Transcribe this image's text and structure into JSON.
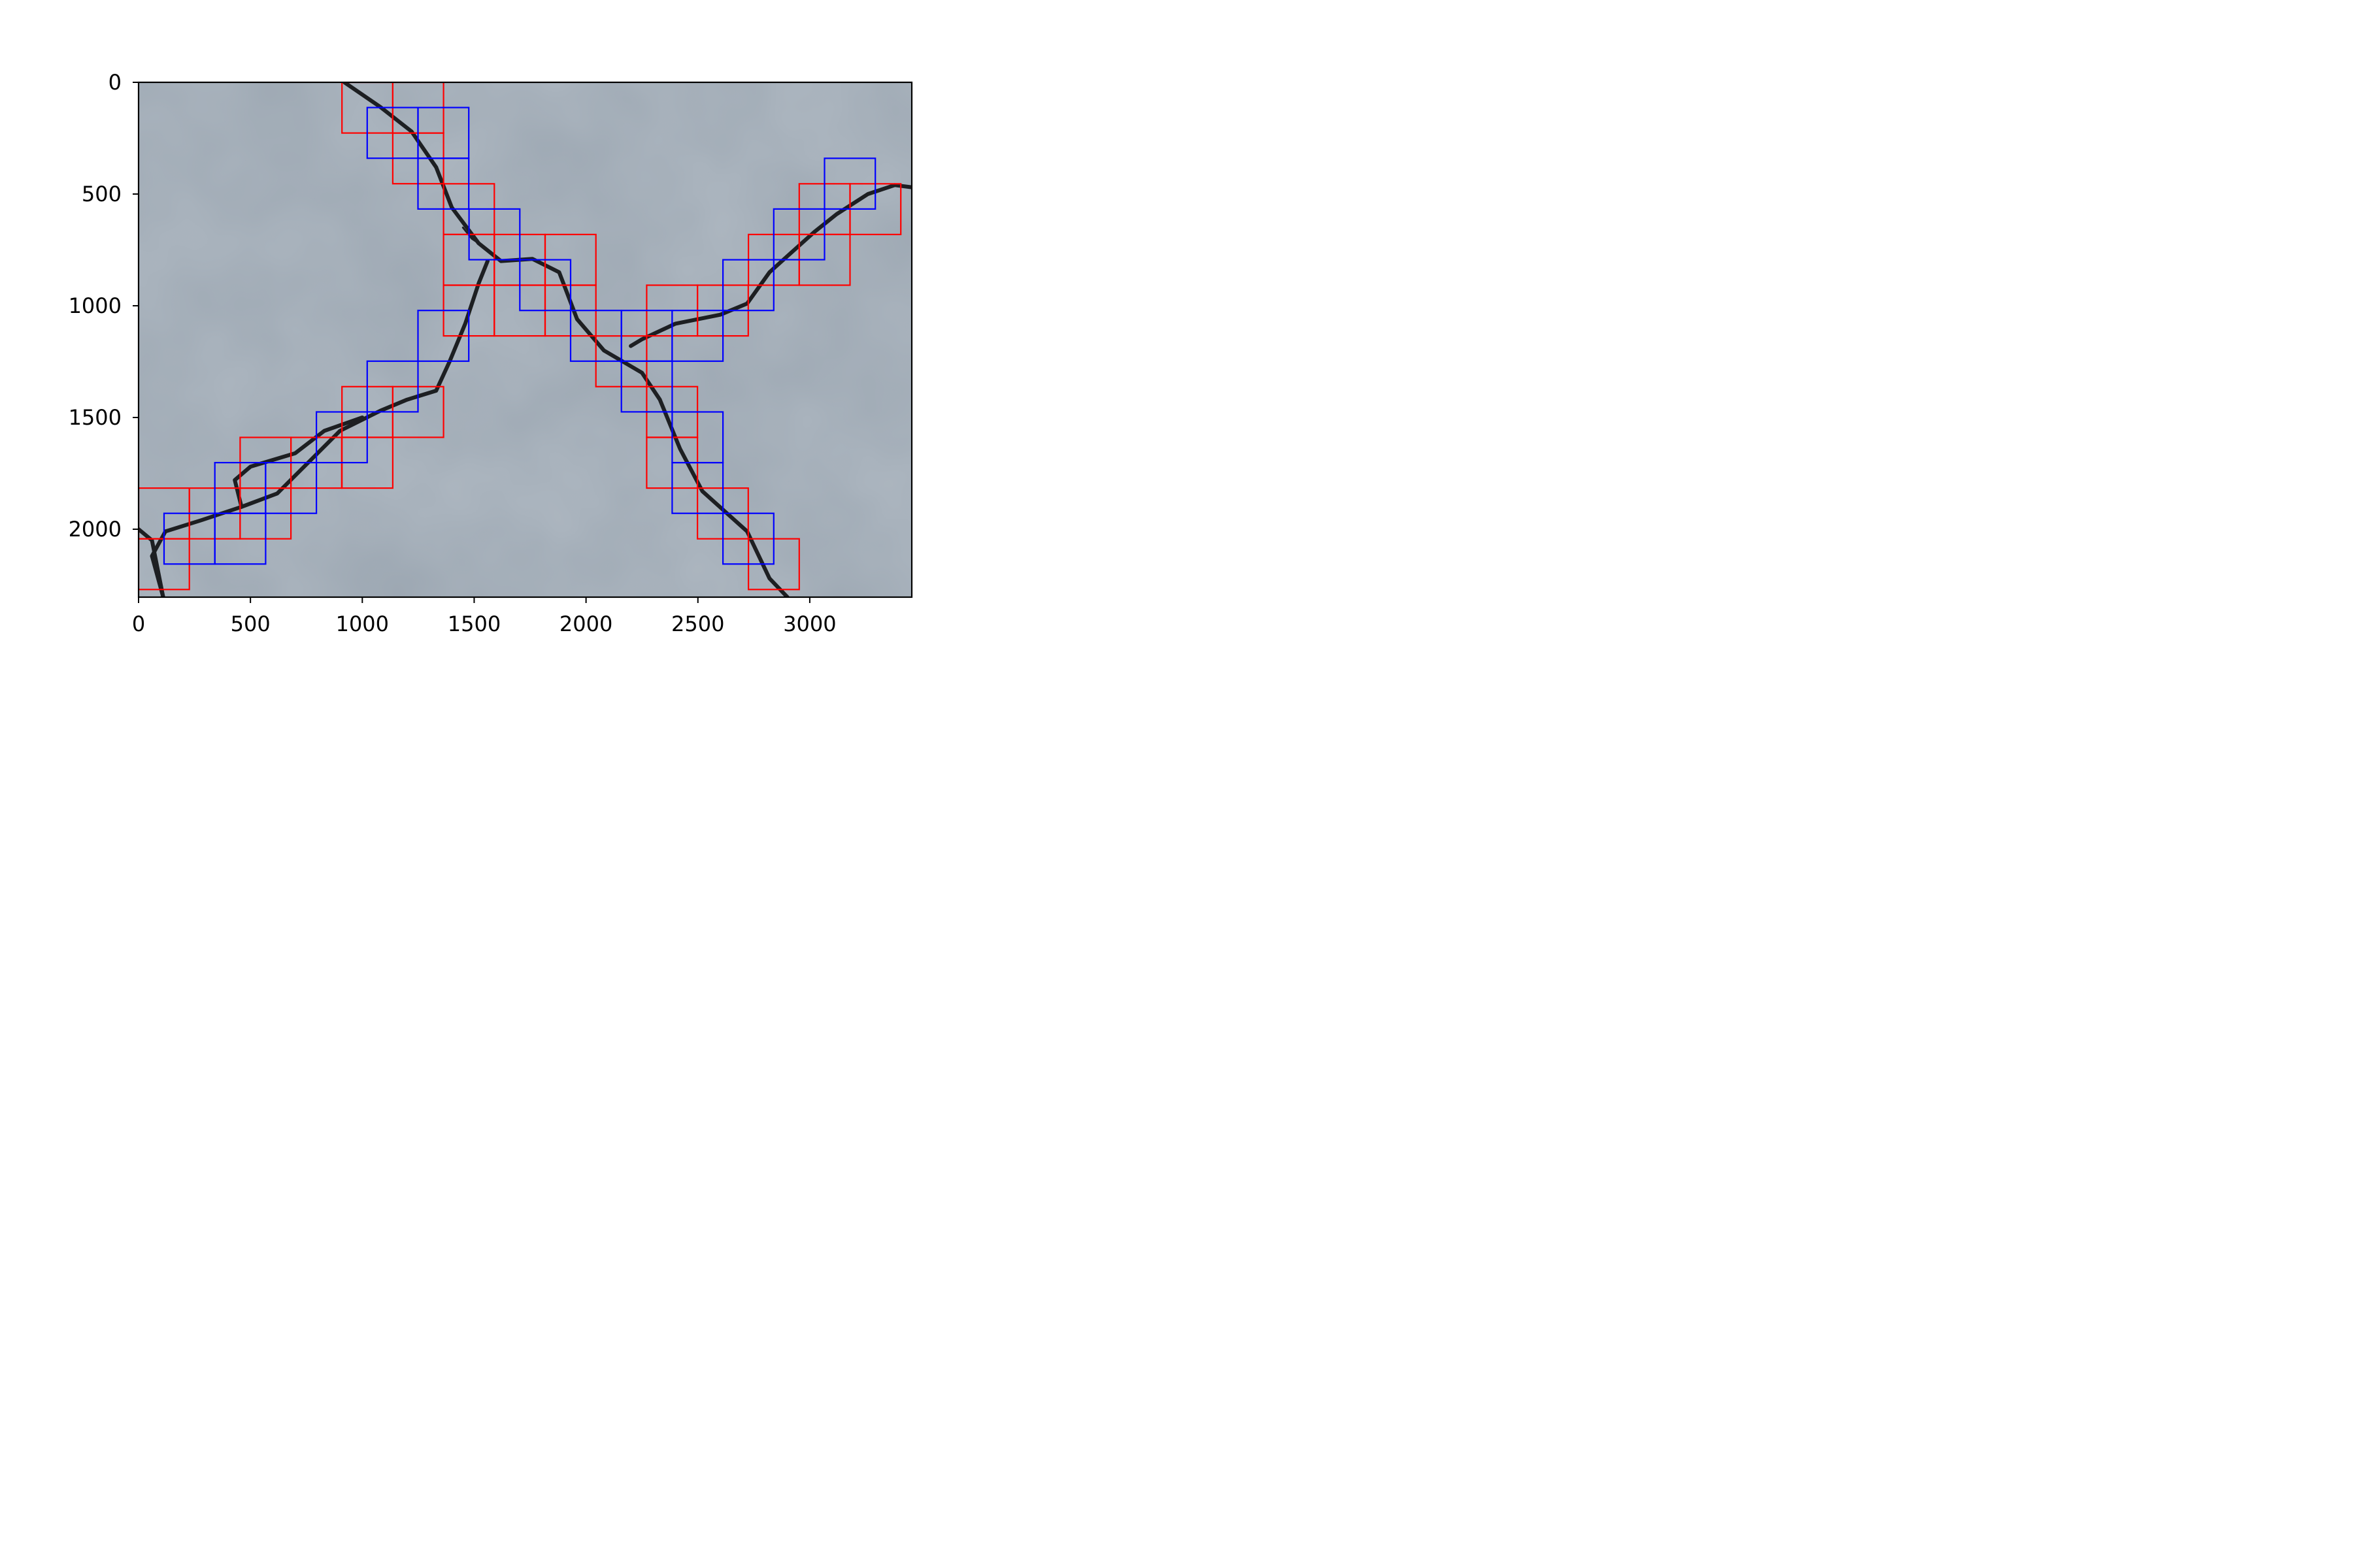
{
  "chart_data": {
    "type": "image-with-box-overlay",
    "title": "",
    "xlabel": "",
    "ylabel": "",
    "xlim": [
      0,
      3456
    ],
    "ylim": [
      2304,
      0
    ],
    "y_axis_inverted": true,
    "grid": false,
    "legend": "none",
    "xticks": [
      0,
      500,
      1000,
      1500,
      2000,
      2500,
      3000
    ],
    "yticks": [
      0,
      500,
      1000,
      1500,
      2000
    ],
    "box_size": 227,
    "series": [
      {
        "color": "#ff0000",
        "boxes": [
          [
            909,
            0
          ],
          [
            1136,
            0
          ],
          [
            1136,
            227
          ],
          [
            1363,
            454
          ],
          [
            1363,
            681
          ],
          [
            1590,
            681
          ],
          [
            1817,
            681
          ],
          [
            1363,
            908
          ],
          [
            1590,
            908
          ],
          [
            1817,
            908
          ],
          [
            2044,
            1135
          ],
          [
            2271,
            908
          ],
          [
            2498,
            908
          ],
          [
            2726,
            681
          ],
          [
            2953,
            454
          ],
          [
            3180,
            454
          ],
          [
            2953,
            681
          ],
          [
            2271,
            1362
          ],
          [
            2271,
            1589
          ],
          [
            2498,
            1816
          ],
          [
            2726,
            2043
          ],
          [
            1136,
            1362
          ],
          [
            909,
            1362
          ],
          [
            909,
            1589
          ],
          [
            681,
            1589
          ],
          [
            454,
            1589
          ],
          [
            454,
            1816
          ],
          [
            0,
            1816
          ],
          [
            227,
            1816
          ],
          [
            0,
            2043
          ]
        ]
      },
      {
        "color": "#0000ff",
        "boxes": [
          [
            1022,
            113
          ],
          [
            1249,
            113
          ],
          [
            1249,
            340
          ],
          [
            1477,
            567
          ],
          [
            1704,
            794
          ],
          [
            1249,
            1021
          ],
          [
            1022,
            1248
          ],
          [
            795,
            1475
          ],
          [
            568,
            1702
          ],
          [
            341,
            1702
          ],
          [
            114,
            1929
          ],
          [
            341,
            1929
          ],
          [
            1931,
            1021
          ],
          [
            2158,
            1021
          ],
          [
            2385,
            1021
          ],
          [
            2158,
            1248
          ],
          [
            2612,
            794
          ],
          [
            2839,
            567
          ],
          [
            3066,
            340
          ],
          [
            2385,
            1475
          ],
          [
            2385,
            1702
          ],
          [
            2612,
            1929
          ]
        ]
      }
    ]
  },
  "colors": {
    "background_image": "#9aa5b0",
    "crack": "#1d1f22",
    "axes": "#000000"
  }
}
